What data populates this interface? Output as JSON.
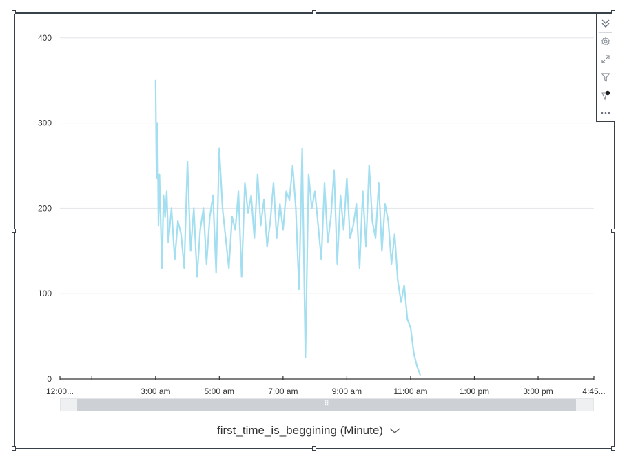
{
  "toolbar": {
    "icons": [
      "collapse-chevrons-icon",
      "settings-gear-icon",
      "expand-arrows-icon",
      "filter-funnel-icon",
      "highlight-tag-icon",
      "more-dots-icon"
    ]
  },
  "x_axis": {
    "title": "first_time_is_beggining (Minute)",
    "dropdown_icon": "chevron-down-icon"
  },
  "scrollbar": {
    "grip_icon": "grip-dots-icon",
    "grip_glyph": "⠿"
  },
  "colors": {
    "series": "#a3dff0",
    "frame": "#38404a",
    "grid": "#e2e5e8",
    "axis": "#333333"
  },
  "chart_data": {
    "type": "line",
    "title": "",
    "xlabel": "first_time_is_beggining (Minute)",
    "ylabel": "",
    "ylim": [
      0,
      420
    ],
    "y_ticks": [
      0,
      100,
      200,
      300,
      400
    ],
    "x_ticks": [
      "12:00...",
      "",
      "3:00 am",
      "5:00 am",
      "7:00 am",
      "9:00 am",
      "11:00 am",
      "1:00 pm",
      "3:00 pm",
      "4:45..."
    ],
    "x_tick_hours": [
      0,
      1,
      3,
      5,
      7,
      9,
      11,
      13,
      15,
      16.75
    ],
    "grid": true,
    "legend": "none",
    "series": [
      {
        "color": "#a3dff0",
        "x_unit": "hours after 12:00 am",
        "x": [
          3.0,
          3.03,
          3.06,
          3.09,
          3.12,
          3.15,
          3.2,
          3.25,
          3.3,
          3.35,
          3.4,
          3.5,
          3.6,
          3.7,
          3.8,
          3.9,
          4.0,
          4.1,
          4.2,
          4.3,
          4.4,
          4.5,
          4.6,
          4.7,
          4.8,
          4.9,
          5.0,
          5.1,
          5.2,
          5.3,
          5.4,
          5.5,
          5.6,
          5.7,
          5.8,
          5.9,
          6.0,
          6.1,
          6.2,
          6.3,
          6.4,
          6.5,
          6.6,
          6.7,
          6.8,
          6.9,
          7.0,
          7.1,
          7.2,
          7.3,
          7.4,
          7.5,
          7.6,
          7.7,
          7.8,
          7.9,
          8.0,
          8.1,
          8.2,
          8.3,
          8.4,
          8.5,
          8.6,
          8.7,
          8.8,
          8.9,
          9.0,
          9.1,
          9.2,
          9.3,
          9.4,
          9.5,
          9.6,
          9.7,
          9.8,
          9.9,
          10.0,
          10.1,
          10.2,
          10.3,
          10.4,
          10.5,
          10.6,
          10.7,
          10.8,
          10.9,
          11.0,
          11.1,
          11.2,
          11.3
        ],
        "values": [
          350,
          235,
          300,
          180,
          240,
          200,
          130,
          215,
          190,
          220,
          160,
          200,
          140,
          185,
          170,
          130,
          255,
          150,
          200,
          120,
          175,
          200,
          135,
          190,
          215,
          125,
          270,
          200,
          165,
          130,
          190,
          175,
          220,
          120,
          230,
          195,
          215,
          165,
          240,
          180,
          210,
          155,
          185,
          230,
          165,
          205,
          175,
          220,
          210,
          250,
          200,
          105,
          270,
          25,
          240,
          200,
          220,
          180,
          140,
          230,
          160,
          190,
          245,
          135,
          215,
          175,
          235,
          165,
          180,
          205,
          130,
          220,
          155,
          250,
          185,
          165,
          230,
          150,
          205,
          185,
          135,
          170,
          115,
          90,
          110,
          70,
          60,
          30,
          15,
          5
        ]
      }
    ]
  }
}
